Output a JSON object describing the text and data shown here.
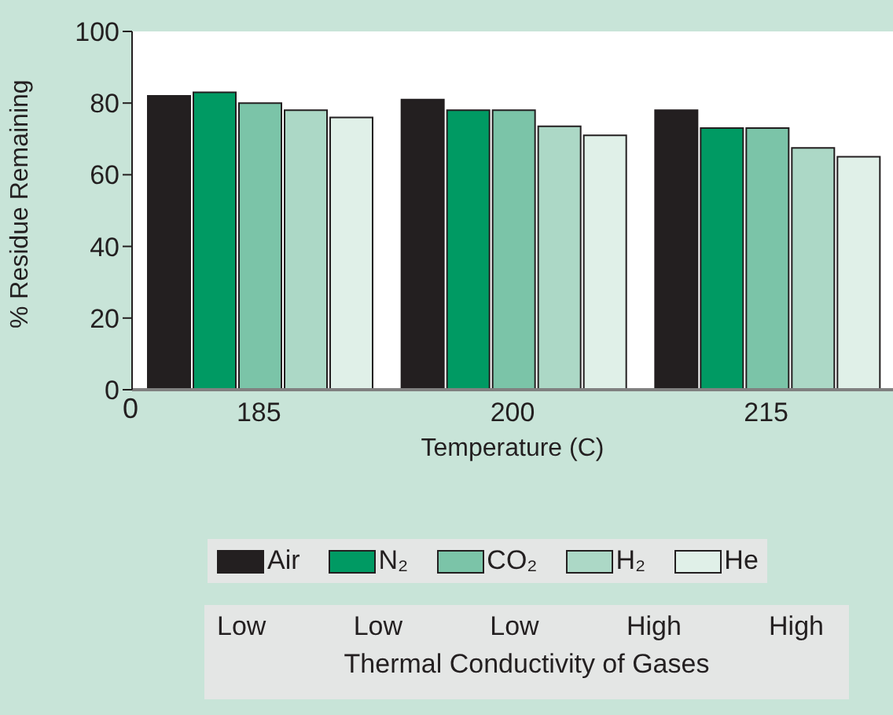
{
  "chart_data": {
    "type": "bar",
    "xlabel": "Temperature (C)",
    "ylabel": "% Residue Remaining",
    "categories": [
      "185",
      "200",
      "215"
    ],
    "series": [
      {
        "name": "Air",
        "color": "#231f20",
        "values": [
          82,
          81,
          78
        ]
      },
      {
        "name": "N₂",
        "color": "#009a63",
        "values": [
          83,
          78,
          73
        ]
      },
      {
        "name": "CO₂",
        "color": "#7bc4a8",
        "values": [
          80,
          78,
          73
        ]
      },
      {
        "name": "H₂",
        "color": "#acd8c6",
        "values": [
          78,
          73.5,
          67.5
        ]
      },
      {
        "name": "He",
        "color": "#e0f0e8",
        "values": [
          76,
          71,
          65
        ]
      }
    ],
    "ylim": [
      0,
      100
    ],
    "yticks": [
      0,
      20,
      40,
      60,
      80,
      100
    ],
    "grid": false,
    "legend": "bottom",
    "annotations": [
      "0",
      "Low",
      "Low",
      "Low",
      "High",
      "High",
      "Thermal Conductivity of Gases"
    ]
  }
}
